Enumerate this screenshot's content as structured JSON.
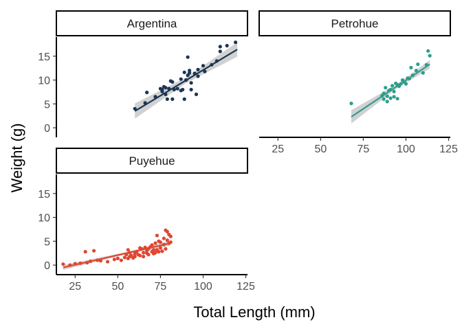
{
  "chart_data": {
    "type": "scatter",
    "xlabel": "Total Length (mm)",
    "ylabel": "Weight (g)",
    "xlim": [
      14,
      126
    ],
    "ylim": [
      -2,
      19
    ],
    "x_ticks": [
      25,
      50,
      75,
      100,
      125
    ],
    "y_ticks": [
      0,
      5,
      10,
      15
    ],
    "fit": "linear regression with confidence band",
    "panels": [
      {
        "name": "Argentina",
        "color": "#1c3553",
        "points": [
          [
            60,
            4.0
          ],
          [
            66,
            5.2
          ],
          [
            67,
            7.4
          ],
          [
            72,
            6.5
          ],
          [
            75,
            8.2
          ],
          [
            76,
            8.0
          ],
          [
            76,
            7.6
          ],
          [
            77,
            8.6
          ],
          [
            78,
            7.0
          ],
          [
            78,
            8.4
          ],
          [
            79,
            6.0
          ],
          [
            80,
            8.2
          ],
          [
            81,
            9.8
          ],
          [
            82,
            9.6
          ],
          [
            82,
            6.0
          ],
          [
            83,
            8.0
          ],
          [
            85,
            8.2
          ],
          [
            87,
            7.8
          ],
          [
            87,
            10.2
          ],
          [
            88,
            8.0
          ],
          [
            89,
            11.6
          ],
          [
            89,
            6.0
          ],
          [
            90,
            10.0
          ],
          [
            91,
            14.8
          ],
          [
            91,
            11.0
          ],
          [
            92,
            12.0
          ],
          [
            92,
            11.5
          ],
          [
            93,
            9.4
          ],
          [
            93,
            8.0
          ],
          [
            95,
            11.4
          ],
          [
            96,
            7.0
          ],
          [
            97,
            12.2
          ],
          [
            97,
            10.8
          ],
          [
            100,
            13.0
          ],
          [
            101,
            11.8
          ],
          [
            105,
            13.2
          ],
          [
            108,
            14.0
          ],
          [
            110,
            16.0
          ],
          [
            110,
            17.0
          ],
          [
            114,
            17.2
          ],
          [
            119,
            17.9
          ]
        ],
        "fit_line": [
          [
            60,
            3.5
          ],
          [
            120,
            16.4
          ]
        ],
        "band_halfwidth": [
          [
            60,
            1.6
          ],
          [
            90,
            0.6
          ],
          [
            120,
            1.5
          ]
        ]
      },
      {
        "name": "Petrohue",
        "color": "#2e9d8c",
        "points": [
          [
            68,
            5.1
          ],
          [
            86,
            6.7
          ],
          [
            87,
            7.2
          ],
          [
            87,
            6.0
          ],
          [
            88,
            8.4
          ],
          [
            89,
            6.6
          ],
          [
            89,
            5.5
          ],
          [
            90,
            7.8
          ],
          [
            91,
            8.0
          ],
          [
            91,
            6.2
          ],
          [
            92,
            8.8
          ],
          [
            93,
            7.6
          ],
          [
            93,
            6.5
          ],
          [
            94,
            9.3
          ],
          [
            95,
            9.0
          ],
          [
            95,
            6.1
          ],
          [
            96,
            8.7
          ],
          [
            97,
            9.2
          ],
          [
            98,
            10.0
          ],
          [
            99,
            9.6
          ],
          [
            100,
            9.2
          ],
          [
            101,
            10.4
          ],
          [
            102,
            10.3
          ],
          [
            103,
            12.6
          ],
          [
            104,
            11.0
          ],
          [
            106,
            12.0
          ],
          [
            107,
            13.3
          ],
          [
            110,
            11.5
          ],
          [
            112,
            13.2
          ],
          [
            113,
            16.1
          ],
          [
            114,
            15.1
          ]
        ],
        "fit_line": [
          [
            68,
            2.3
          ],
          [
            114,
            13.3
          ]
        ],
        "band_halfwidth": [
          [
            68,
            1.4
          ],
          [
            95,
            0.4
          ],
          [
            114,
            0.9
          ]
        ]
      },
      {
        "name": "Puyehue",
        "color": "#e04631",
        "points": [
          [
            18,
            0.2
          ],
          [
            22,
            0.0
          ],
          [
            25,
            0.3
          ],
          [
            28,
            0.4
          ],
          [
            31,
            2.8
          ],
          [
            32,
            0.5
          ],
          [
            34,
            0.8
          ],
          [
            36,
            3.0
          ],
          [
            38,
            1.0
          ],
          [
            40,
            0.9
          ],
          [
            44,
            0.7
          ],
          [
            48,
            1.2
          ],
          [
            50,
            1.4
          ],
          [
            52,
            1.0
          ],
          [
            54,
            1.6
          ],
          [
            55,
            2.2
          ],
          [
            56,
            1.4
          ],
          [
            56,
            3.2
          ],
          [
            57,
            1.8
          ],
          [
            57,
            2.6
          ],
          [
            58,
            2.0
          ],
          [
            59,
            1.5
          ],
          [
            60,
            2.4
          ],
          [
            60,
            1.8
          ],
          [
            61,
            2.8
          ],
          [
            62,
            2.2
          ],
          [
            63,
            3.6
          ],
          [
            63,
            2.0
          ],
          [
            64,
            3.4
          ],
          [
            65,
            2.6
          ],
          [
            65,
            1.8
          ],
          [
            66,
            3.7
          ],
          [
            67,
            3.0
          ],
          [
            67,
            2.5
          ],
          [
            68,
            3.4
          ],
          [
            68,
            2.2
          ],
          [
            69,
            3.8
          ],
          [
            70,
            2.8
          ],
          [
            70,
            4.2
          ],
          [
            71,
            3.2
          ],
          [
            71,
            2.4
          ],
          [
            72,
            4.6
          ],
          [
            72,
            2.6
          ],
          [
            73,
            3.2
          ],
          [
            73,
            6.2
          ],
          [
            74,
            5.0
          ],
          [
            74,
            2.8
          ],
          [
            75,
            3.6
          ],
          [
            75,
            4.8
          ],
          [
            76,
            2.9
          ],
          [
            77,
            5.6
          ],
          [
            77,
            4.3
          ],
          [
            78,
            7.3
          ],
          [
            78,
            3.4
          ],
          [
            79,
            5.2
          ],
          [
            79,
            7.0
          ],
          [
            80,
            4.6
          ],
          [
            80,
            6.4
          ],
          [
            81,
            6.0
          ],
          [
            81,
            4.8
          ]
        ],
        "fit_line": [
          [
            18,
            -0.5
          ],
          [
            81,
            4.6
          ]
        ],
        "band_halfwidth": [
          [
            18,
            0.5
          ],
          [
            55,
            0.25
          ],
          [
            81,
            0.5
          ]
        ]
      }
    ]
  }
}
